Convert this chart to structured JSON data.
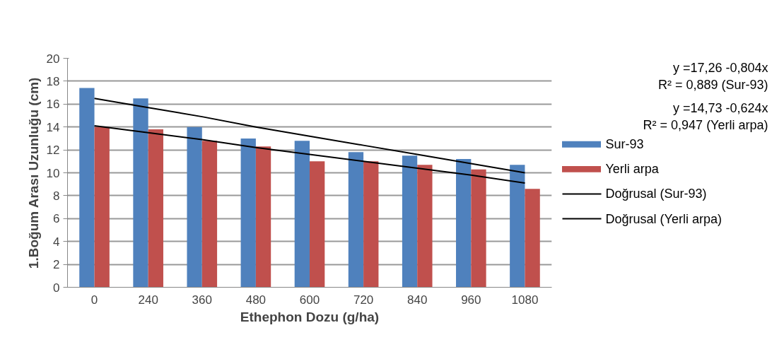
{
  "chart_data": {
    "type": "bar",
    "xlabel": "Ethephon Dozu (g/ha)",
    "ylabel": "1.Boğum Arası Uzunluğu (cm)",
    "categories": [
      "0",
      "240",
      "360",
      "480",
      "600",
      "720",
      "840",
      "960",
      "1080"
    ],
    "series": [
      {
        "name": "Sur-93",
        "color": "#4f81bd",
        "values": [
          17.4,
          16.5,
          14.0,
          13.0,
          12.8,
          11.8,
          11.5,
          11.2,
          10.7
        ]
      },
      {
        "name": "Yerli arpa",
        "color": "#c0504d",
        "values": [
          14.0,
          13.8,
          12.8,
          12.3,
          11.0,
          11.0,
          10.7,
          10.3,
          8.6
        ]
      },
      {
        "name": "Doğrusal (Sur-93)",
        "type": "line",
        "color": "#000000",
        "values": [
          16.5,
          15.7,
          14.9,
          14.0,
          13.2,
          12.4,
          11.6,
          10.8,
          10.0
        ]
      },
      {
        "name": "Doğrusal (Yerli arpa)",
        "type": "line",
        "color": "#000000",
        "values": [
          14.1,
          13.5,
          12.9,
          12.2,
          11.6,
          11.0,
          10.4,
          9.8,
          9.1
        ]
      }
    ],
    "ylim": [
      0,
      20
    ],
    "yticks": [
      0,
      2,
      4,
      6,
      8,
      10,
      12,
      14,
      16,
      18,
      20
    ],
    "grid": "y",
    "legend": "right",
    "annotations": [
      "y =17,26 -0,804x\nR² = 0,889 (Sur-93)",
      "y =14,73 -0,624x\nR² = 0,947 (Yerli arpa)"
    ]
  }
}
